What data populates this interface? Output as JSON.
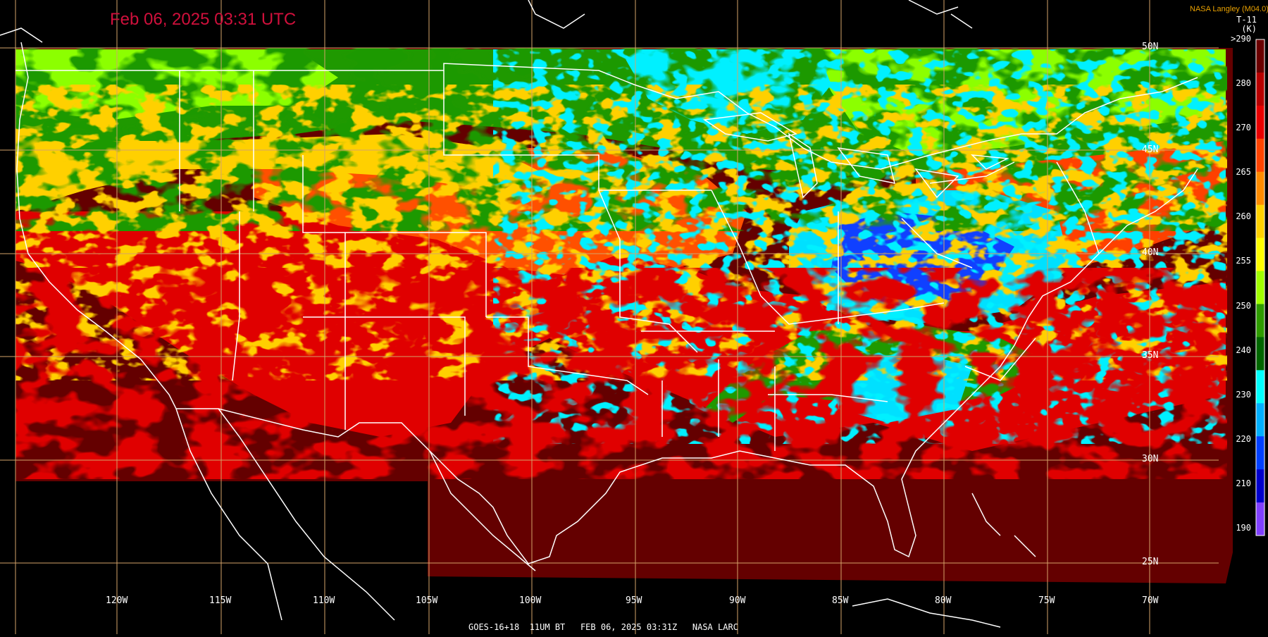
{
  "header": {
    "timestamp": "Feb 06, 2025 03:31 UTC",
    "credit": "NASA Langley (M04.0)",
    "product": "T-11",
    "units": "(K)"
  },
  "footer": {
    "text": "GOES-16+18  11UM BT   FEB 06, 2025 03:31Z   NASA LARC"
  },
  "longitude_labels": [
    "120W",
    "115W",
    "110W",
    "105W",
    "100W",
    "95W",
    "90W",
    "85W",
    "80W",
    "75W",
    "70W"
  ],
  "latitude_labels": [
    "50N",
    "45N",
    "40N",
    "35N",
    "30N",
    "25N"
  ],
  "colorbar": {
    "labels": [
      ">290",
      "280",
      "270",
      "265",
      "260",
      "255",
      "250",
      "240",
      "230",
      "220",
      "210",
      "190"
    ],
    "colors": [
      "#6a0000",
      "#b80000",
      "#e80000",
      "#ff4400",
      "#ff8c00",
      "#ffd200",
      "#ffff00",
      "#a0ff00",
      "#2e9c00",
      "#006600",
      "#00ffff",
      "#00b0ff",
      "#0040ff",
      "#0000cc",
      "#8040ff"
    ]
  },
  "map_colors": {
    "warm_dark": "#640000",
    "warm": "#e00000",
    "orange": "#ff5000",
    "yellow": "#ffd000",
    "green": "#20a000",
    "lime": "#90ff00",
    "cyan": "#00f0ff",
    "blue": "#1040ff",
    "grid": "#d4a46a",
    "outline": "#ffffff"
  }
}
